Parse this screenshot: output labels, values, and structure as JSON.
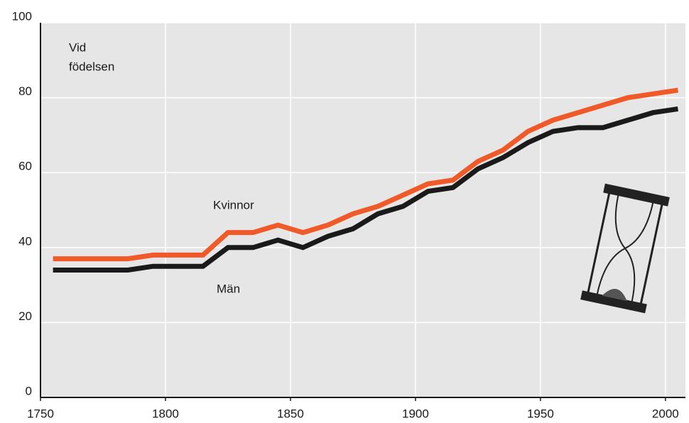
{
  "chart_data": {
    "type": "line",
    "annotation": [
      "Vid",
      "födelsen"
    ],
    "x": [
      1755,
      1785,
      1795,
      1815,
      1825,
      1835,
      1845,
      1855,
      1865,
      1875,
      1885,
      1895,
      1905,
      1915,
      1925,
      1935,
      1945,
      1955,
      1965,
      1975,
      1985,
      1995,
      2005
    ],
    "series": [
      {
        "name": "Kvinnor",
        "color": "#f05a28",
        "values": [
          37,
          37,
          38,
          38,
          44,
          44,
          46,
          44,
          46,
          49,
          51,
          54,
          57,
          58,
          63,
          66,
          71,
          74,
          76,
          78,
          80,
          81,
          82
        ]
      },
      {
        "name": "Män",
        "color": "#1a1a1a",
        "values": [
          34,
          34,
          35,
          35,
          40,
          40,
          42,
          40,
          43,
          45,
          49,
          51,
          55,
          56,
          61,
          64,
          68,
          71,
          72,
          72,
          74,
          76,
          77
        ]
      }
    ],
    "xlim": [
      1750,
      2008
    ],
    "xticks": [
      1750,
      1800,
      1850,
      1900,
      1950,
      2000
    ],
    "ylim": [
      0,
      100
    ],
    "yticks": [
      0,
      20,
      40,
      60,
      80,
      100
    ],
    "grid": true
  }
}
